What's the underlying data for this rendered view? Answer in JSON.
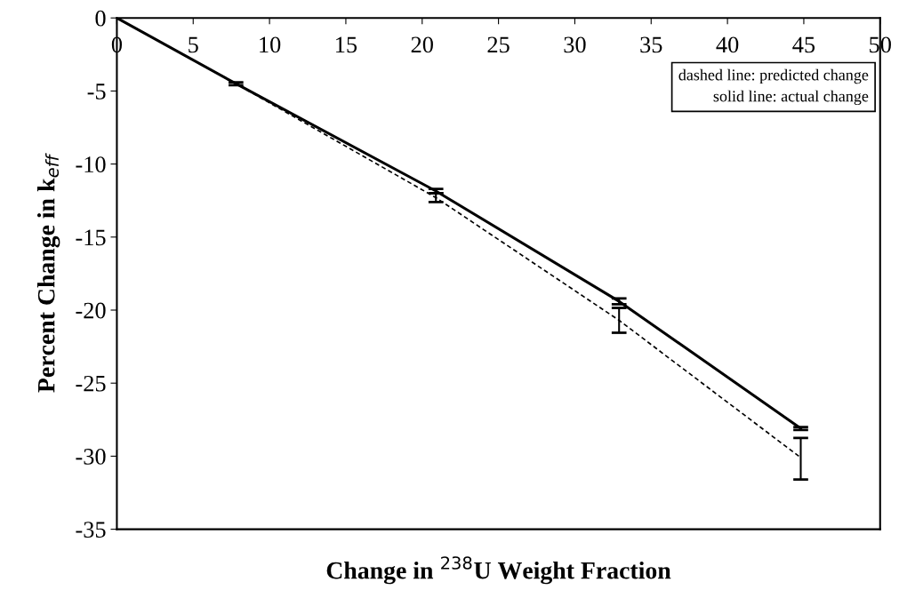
{
  "chart_data": {
    "type": "line",
    "xlabel": "Change in $^{238}$U Weight Fraction",
    "ylabel": "Percent Change in k$_{eff}$",
    "xlim": [
      0,
      50
    ],
    "xticks": [
      0,
      5,
      10,
      15,
      20,
      25,
      30,
      35,
      40,
      45,
      50
    ],
    "ylim": [
      -35,
      0
    ],
    "yticks": [
      -35,
      -30,
      -25,
      -20,
      -15,
      -10,
      -5,
      0
    ],
    "series": [
      {
        "color": "#000000",
        "line_style": "solid",
        "x": [
          0,
          7.8,
          20.9,
          32.9,
          44.8
        ],
        "values": [
          0,
          -4.5,
          -11.85,
          -19.4,
          -28.1
        ],
        "errors": [
          null,
          0.1,
          0.15,
          0.2,
          0.1
        ]
      },
      {
        "color": "#000000",
        "line_style": "dashed",
        "x": [
          0,
          7.8,
          20.9,
          32.9,
          44.8
        ],
        "values": [
          0,
          -4.5,
          -12.3,
          -20.7,
          -30.1
        ],
        "errors": [
          null,
          null,
          [
            -12.6,
            -12.0
          ],
          [
            -21.55,
            -19.85
          ],
          [
            -31.6,
            -28.75
          ]
        ]
      }
    ],
    "annotations": [
      "dashed line: predicted change",
      "solid line: actual change"
    ],
    "grid": false,
    "legend": false,
    "marker": "none"
  }
}
